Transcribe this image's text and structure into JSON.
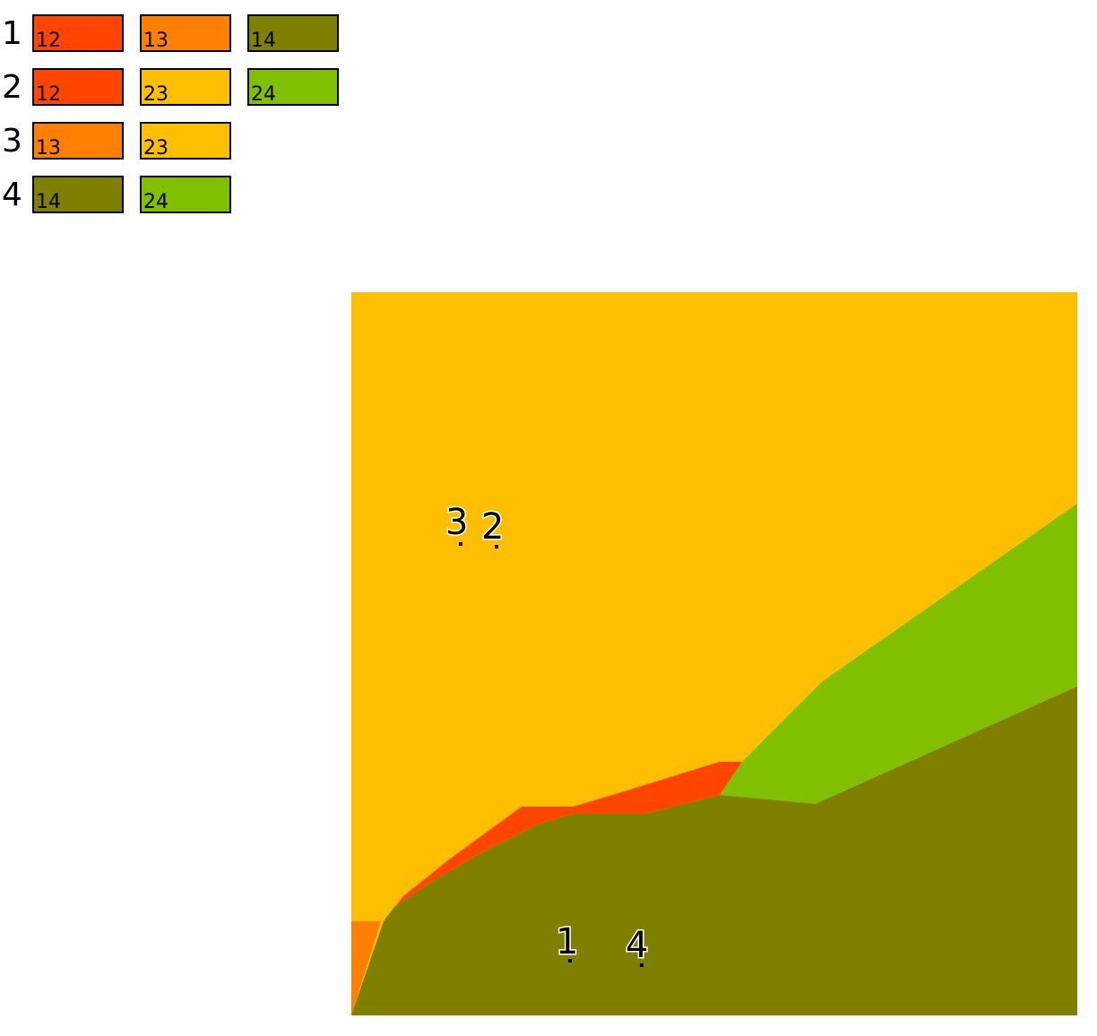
{
  "legend": {
    "rows": [
      {
        "label": "1",
        "items": [
          {
            "label": "12",
            "color": "#ff4500"
          },
          {
            "label": "13",
            "color": "#ff8000"
          },
          {
            "label": "14",
            "color": "#808000"
          }
        ]
      },
      {
        "label": "2",
        "items": [
          {
            "label": "12",
            "color": "#ff4500"
          },
          {
            "label": "23",
            "color": "#fdbf00"
          },
          {
            "label": "24",
            "color": "#80c000"
          }
        ]
      },
      {
        "label": "3",
        "items": [
          {
            "label": "13",
            "color": "#ff8000"
          },
          {
            "label": "23",
            "color": "#fdbf00"
          }
        ]
      },
      {
        "label": "4",
        "items": [
          {
            "label": "14",
            "color": "#808000"
          },
          {
            "label": "24",
            "color": "#80c000"
          }
        ]
      }
    ]
  },
  "points": [
    {
      "label": "3"
    },
    {
      "label": "2"
    },
    {
      "label": "1"
    },
    {
      "label": "4"
    }
  ]
}
